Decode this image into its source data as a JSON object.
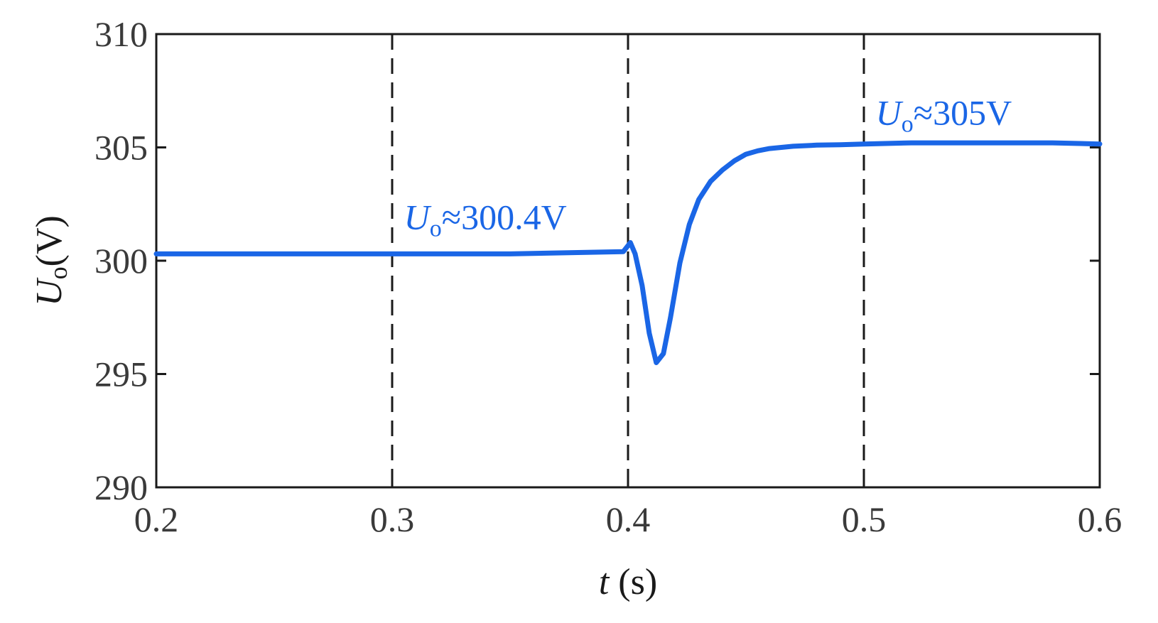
{
  "chart_data": {
    "type": "line",
    "xlim": [
      0.2,
      0.6
    ],
    "ylim": [
      290,
      310
    ],
    "xticks": [
      "0.2",
      "0.3",
      "0.4",
      "0.5",
      "0.6"
    ],
    "xtick_values": [
      0.2,
      0.3,
      0.4,
      0.5,
      0.6
    ],
    "yticks": [
      "290",
      "295",
      "300",
      "305",
      "310"
    ],
    "ytick_values": [
      290,
      295,
      300,
      305,
      310
    ],
    "xlabel": {
      "symbol": "t",
      "unit": " (s)"
    },
    "ylabel": {
      "symbol": "U",
      "subscript": "o",
      "unit": "(V)"
    },
    "grid": false,
    "vlines": [
      0.3,
      0.4,
      0.5
    ],
    "series": [
      {
        "color": "#1a66e6",
        "x": [
          0.2,
          0.25,
          0.3,
          0.35,
          0.398,
          0.401,
          0.403,
          0.406,
          0.409,
          0.412,
          0.415,
          0.418,
          0.422,
          0.426,
          0.43,
          0.435,
          0.44,
          0.445,
          0.45,
          0.455,
          0.46,
          0.47,
          0.48,
          0.49,
          0.5,
          0.52,
          0.55,
          0.58,
          0.6
        ],
        "y": [
          300.3,
          300.3,
          300.3,
          300.3,
          300.4,
          300.8,
          300.3,
          298.9,
          296.8,
          295.5,
          295.9,
          297.5,
          299.9,
          301.6,
          302.7,
          303.5,
          304.0,
          304.4,
          304.7,
          304.85,
          304.95,
          305.05,
          305.1,
          305.12,
          305.15,
          305.2,
          305.2,
          305.2,
          305.15
        ]
      }
    ],
    "annotations": [
      {
        "symbol": "U",
        "subscript": "o",
        "text": "≈300.4V",
        "x": 0.305,
        "y": 301.4
      },
      {
        "symbol": "U",
        "subscript": "o",
        "text": "≈305V",
        "x": 0.505,
        "y": 306.0
      }
    ]
  }
}
